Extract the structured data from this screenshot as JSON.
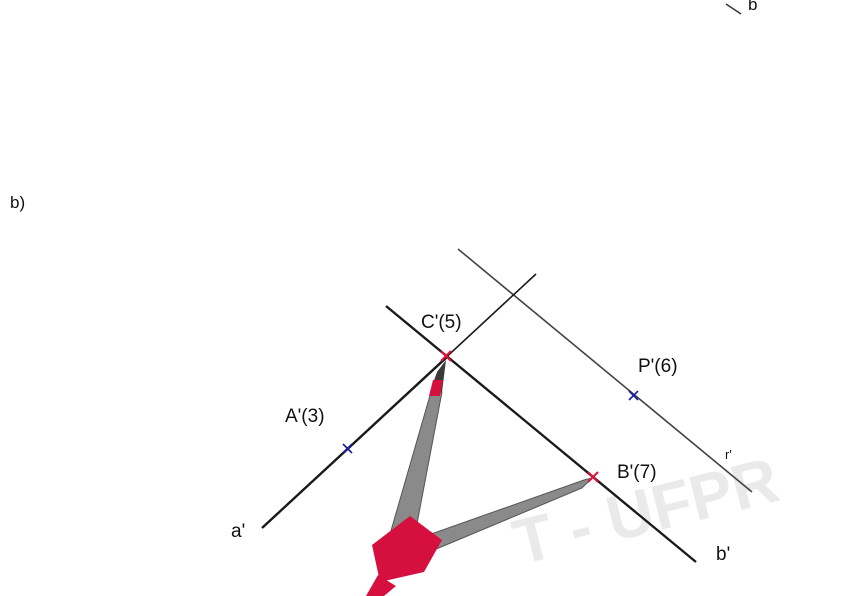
{
  "part_label": "b)",
  "watermark": "T - UFPR",
  "top_fragment_label": "b",
  "labels": {
    "a_prime": "a'",
    "b_prime": "b'",
    "r_prime": "r'",
    "A": "A'(3)",
    "B": "B'(7)",
    "C": "C'(5)",
    "P": "P'(6)"
  },
  "colors": {
    "line": "#1a1a1a",
    "thin_line": "#444444",
    "mark_blue": "#1a1aa8",
    "mark_red": "#e0103a",
    "compass_gray": "#8a8a8a",
    "compass_red": "#d6103e"
  }
}
